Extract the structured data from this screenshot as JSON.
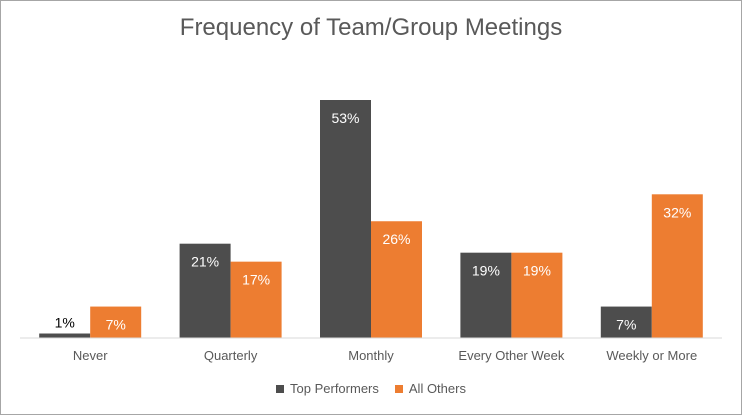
{
  "chart_data": {
    "type": "bar",
    "title": "Frequency of Team/Group Meetings",
    "categories": [
      "Never",
      "Quarterly",
      "Monthly",
      "Every Other Week",
      "Weekly or More"
    ],
    "series": [
      {
        "name": "Top Performers",
        "values": [
          1,
          21,
          53,
          19,
          7
        ],
        "labels": [
          "1%",
          "21%",
          "53%",
          "19%",
          "7%"
        ],
        "color": "#4d4d4d",
        "label_color": "#ffffff"
      },
      {
        "name": "All Others",
        "values": [
          7,
          17,
          26,
          19,
          32
        ],
        "labels": [
          "7%",
          "17%",
          "26%",
          "19%",
          "32%"
        ],
        "color": "#ed7d31",
        "label_color": "#ffffff"
      }
    ],
    "ylim": [
      0,
      53
    ],
    "grid": false,
    "legend_position": "bottom"
  }
}
